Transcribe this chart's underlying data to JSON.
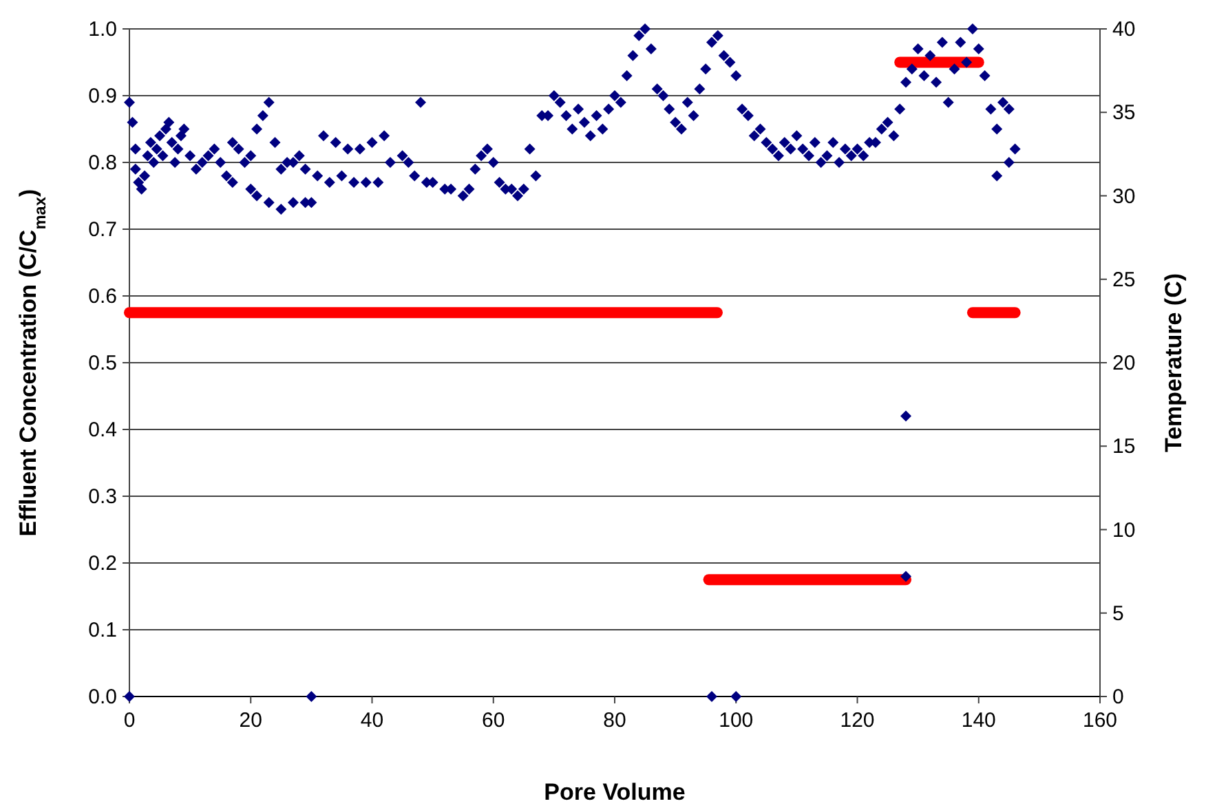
{
  "chart_data": {
    "type": "scatter",
    "xlabel": "Pore Volume",
    "ylabel": "Effluent Concentration (C/C$_{max}$)",
    "y2label": "Temperature (C)",
    "xlim": [
      0,
      160
    ],
    "xticks": [
      0,
      20,
      40,
      60,
      80,
      100,
      120,
      140,
      160
    ],
    "ylim": [
      0,
      1
    ],
    "yticks": [
      {
        "value": 0,
        "label": "0.0"
      },
      0.1,
      0.2,
      0.3,
      0.4,
      0.5,
      0.6,
      0.7,
      0.8,
      0.9,
      {
        "value": 1,
        "label": "1.0"
      }
    ],
    "y2lim": [
      0,
      40
    ],
    "y2ticks": [
      0,
      5,
      10,
      15,
      20,
      25,
      30,
      35,
      40
    ],
    "grid": "y",
    "marker": "diamond",
    "series": [
      {
        "color": "#000080",
        "x": [
          0,
          0,
          0.5,
          1,
          1,
          1.5,
          2,
          2.5,
          3,
          3.5,
          4,
          4.5,
          5,
          5.5,
          6,
          6.5,
          7,
          7.5,
          8,
          8.5,
          9,
          10,
          11,
          12,
          13,
          14,
          15,
          16,
          17,
          17,
          18,
          19,
          20,
          20,
          21,
          21,
          22,
          23,
          23,
          24,
          25,
          25,
          26,
          27,
          27,
          28,
          29,
          29,
          30,
          30,
          31,
          32,
          33,
          34,
          35,
          36,
          37,
          38,
          39,
          40,
          41,
          42,
          43,
          45,
          46,
          47,
          48,
          49,
          50,
          52,
          53,
          55,
          56,
          57,
          58,
          59,
          60,
          61,
          62,
          63,
          64,
          65,
          66,
          67,
          68,
          69,
          70,
          71,
          72,
          73,
          74,
          75,
          76,
          77,
          78,
          79,
          80,
          81,
          82,
          83,
          84,
          85,
          86,
          87,
          88,
          89,
          90,
          91,
          92,
          93,
          94,
          95,
          96,
          96,
          97,
          98,
          99,
          100,
          100,
          101,
          102,
          103,
          104,
          105,
          106,
          107,
          108,
          109,
          110,
          111,
          112,
          113,
          114,
          115,
          116,
          117,
          118,
          119,
          120,
          121,
          122,
          123,
          124,
          125,
          126,
          127,
          128,
          128,
          128,
          129,
          130,
          131,
          132,
          133,
          134,
          135,
          136,
          137,
          138,
          139,
          140,
          141,
          142,
          143,
          143,
          144,
          145,
          145,
          146
        ],
        "values": [
          0.89,
          0,
          0.86,
          0.82,
          0.79,
          0.77,
          0.76,
          0.78,
          0.81,
          0.83,
          0.8,
          0.82,
          0.84,
          0.81,
          0.85,
          0.86,
          0.83,
          0.8,
          0.82,
          0.84,
          0.85,
          0.81,
          0.79,
          0.8,
          0.81,
          0.82,
          0.8,
          0.78,
          0.77,
          0.83,
          0.82,
          0.8,
          0.76,
          0.81,
          0.75,
          0.85,
          0.87,
          0.89,
          0.74,
          0.83,
          0.73,
          0.79,
          0.8,
          0.74,
          0.8,
          0.81,
          0.74,
          0.79,
          0.74,
          0,
          0.78,
          0.84,
          0.77,
          0.83,
          0.78,
          0.82,
          0.77,
          0.82,
          0.77,
          0.83,
          0.77,
          0.84,
          0.8,
          0.81,
          0.8,
          0.78,
          0.89,
          0.77,
          0.77,
          0.76,
          0.76,
          0.75,
          0.76,
          0.79,
          0.81,
          0.82,
          0.8,
          0.77,
          0.76,
          0.76,
          0.75,
          0.76,
          0.82,
          0.78,
          0.87,
          0.87,
          0.9,
          0.89,
          0.87,
          0.85,
          0.88,
          0.86,
          0.84,
          0.87,
          0.85,
          0.88,
          0.9,
          0.89,
          0.93,
          0.96,
          0.99,
          1.0,
          0.97,
          0.91,
          0.9,
          0.88,
          0.86,
          0.85,
          0.89,
          0.87,
          0.91,
          0.94,
          0.98,
          0,
          0.99,
          0.96,
          0.95,
          0.93,
          0,
          0.88,
          0.87,
          0.84,
          0.85,
          0.83,
          0.82,
          0.81,
          0.83,
          0.82,
          0.84,
          0.82,
          0.81,
          0.83,
          0.8,
          0.81,
          0.83,
          0.8,
          0.82,
          0.81,
          0.82,
          0.81,
          0.83,
          0.83,
          0.85,
          0.86,
          0.84,
          0.88,
          0.42,
          0.18,
          0.92,
          0.94,
          0.97,
          0.93,
          0.96,
          0.92,
          0.98,
          0.89,
          0.94,
          0.98,
          0.95,
          1.0,
          0.97,
          0.93,
          0.88,
          0.78,
          0.85,
          0.89,
          0.8,
          0.88,
          0.82
        ]
      },
      {
        "type": "line",
        "axis": "y2",
        "color": "#ff0000",
        "marker": "none",
        "x": [
          0,
          96.9
        ],
        "values": [
          23,
          23
        ]
      },
      {
        "type": "line",
        "axis": "y2",
        "color": "#ff0000",
        "marker": "none",
        "x": [
          95.5,
          128
        ],
        "values": [
          7,
          7
        ]
      },
      {
        "type": "line",
        "axis": "y2",
        "color": "#ff0000",
        "marker": "none",
        "x": [
          127,
          140
        ],
        "values": [
          38,
          38
        ]
      },
      {
        "type": "line",
        "axis": "y2",
        "color": "#ff0000",
        "marker": "none",
        "x": [
          139,
          146
        ],
        "values": [
          23,
          23
        ]
      }
    ]
  }
}
